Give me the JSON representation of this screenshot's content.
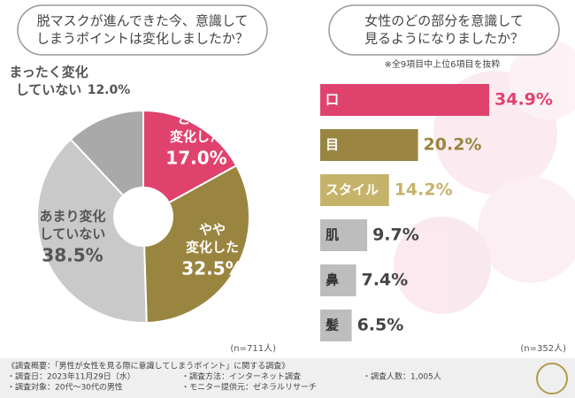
{
  "chart_data": [
    {
      "type": "donut",
      "title": [
        "脱マスクが進んできた今、意識して",
        "しまうポイントは変化しましたか？"
      ],
      "categories": [
        [
          "とても",
          "変化した"
        ],
        [
          "やや",
          "変化した"
        ],
        [
          "あまり変化",
          "していない"
        ],
        [
          "まったく変化",
          "していない"
        ]
      ],
      "values": [
        17.0,
        32.5,
        38.5,
        12.0
      ],
      "value_labels": [
        "17.0%",
        "32.5%",
        "38.5%",
        "12.0%"
      ],
      "colors": [
        "#e0426e",
        "#9a8540",
        "#c9c9c9",
        "#a9a9a9"
      ],
      "note": "(n=711人)"
    },
    {
      "type": "hbar",
      "title": [
        "女性のどの部分を意識して",
        "見るようになりましたか？"
      ],
      "subtitle": "※全9項目中上位6項目を抜粋",
      "categories": [
        "口",
        "目",
        "スタイル",
        "肌",
        "鼻",
        "髪"
      ],
      "values": [
        34.9,
        20.2,
        14.2,
        9.7,
        7.4,
        6.5
      ],
      "value_labels": [
        "34.9%",
        "20.2%",
        "14.2%",
        "9.7%",
        "7.4%",
        "6.5%"
      ],
      "colors": [
        "#e0426e",
        "#9a8540",
        "#c6b36a",
        "#bdbdbd",
        "#bdbdbd",
        "#bdbdbd"
      ],
      "note": "(n=352人)"
    }
  ],
  "footer": {
    "heading": "《調査概要：「男性が女性を見る際に意識してしまうポイント」に関する調査》",
    "items": [
      "・調査日：2023年11月29日（水）",
      "・調査方法：インターネット調査",
      "・調査人数：1,005人",
      "・調査対象：20代～30代の男性",
      "・モニター提供元：ゼネラルリサーチ"
    ]
  }
}
